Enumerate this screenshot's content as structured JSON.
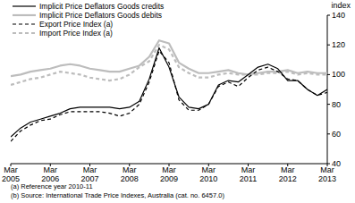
{
  "chart_data": {
    "type": "line",
    "y_label": "index",
    "categories": [
      "Mar 2005",
      null,
      null,
      null,
      "Mar 2006",
      null,
      null,
      null,
      "Mar 2007",
      null,
      null,
      null,
      "Mar 2008",
      null,
      null,
      null,
      "Mar 2009",
      null,
      null,
      null,
      "Mar 2010",
      null,
      null,
      null,
      "Mar 2011",
      null,
      null,
      null,
      "Mar 2012",
      null,
      null,
      null,
      "Mar 2013"
    ],
    "series": [
      {
        "name": "Implicit Price Deflators Goods credits",
        "color": "#000000",
        "line_style": "solid",
        "values": [
          58,
          64,
          68,
          70,
          72,
          74,
          77,
          78,
          78,
          78,
          78,
          77,
          78,
          82,
          97,
          118,
          105,
          85,
          78,
          77,
          80,
          93,
          96,
          95,
          100,
          105,
          107,
          104,
          96,
          96,
          90,
          86,
          90
        ]
      },
      {
        "name": "Implicit Price Deflators Goods debits",
        "color": "#bdbdbd",
        "line_style": "solid",
        "values": [
          99,
          100,
          102,
          103,
          104,
          106,
          107,
          106,
          104,
          103,
          102,
          102,
          104,
          106,
          112,
          123,
          121,
          108,
          104,
          101,
          101,
          102,
          103,
          101,
          100,
          101,
          102,
          102,
          103,
          101,
          102,
          101,
          101
        ]
      },
      {
        "name": "Export Price Index (a)",
        "color": "#000000",
        "line_style": "dashed",
        "values": [
          55,
          62,
          66,
          69,
          70,
          73,
          75,
          75,
          75,
          75,
          74,
          72,
          74,
          80,
          95,
          116,
          108,
          83,
          76,
          76,
          80,
          92,
          95,
          92,
          98,
          103,
          105,
          102,
          97,
          96,
          90,
          86,
          88
        ]
      },
      {
        "name": "Import Price Index (a)",
        "color": "#bdbdbd",
        "line_style": "dashed",
        "values": [
          93,
          95,
          97,
          98,
          100,
          102,
          101,
          100,
          98,
          97,
          96,
          97,
          100,
          105,
          109,
          120,
          117,
          105,
          101,
          98,
          98,
          100,
          101,
          100,
          100,
          100,
          101,
          101,
          102,
          100,
          101,
          100,
          100
        ]
      }
    ],
    "ylim": [
      40,
      140
    ],
    "yticks": [
      40,
      60,
      80,
      100,
      120,
      140
    ],
    "grid": false,
    "legend": "upper left",
    "annotations": [
      "(a) Reference year 2010-11",
      "(b) Source: International Trade Price Indexes, Australia (cat. no. 6457.0)"
    ]
  }
}
